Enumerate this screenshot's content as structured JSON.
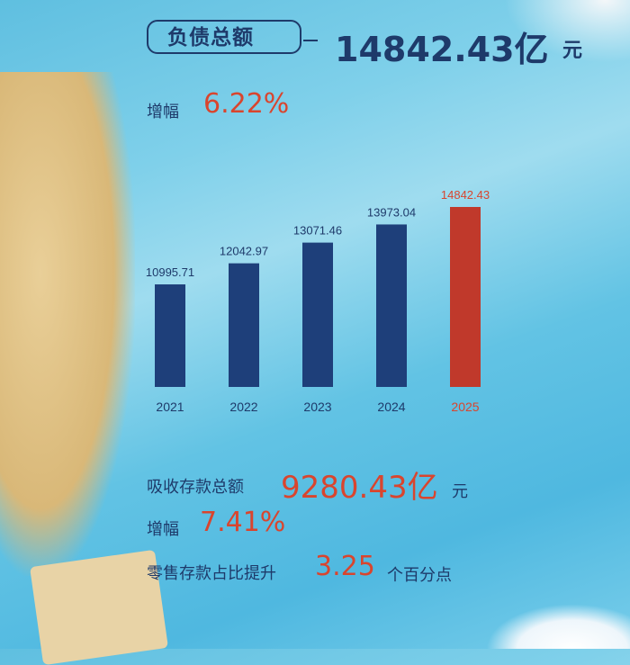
{
  "header": {
    "label": "负债总额",
    "value": "14842.43亿",
    "unit": "元",
    "growth_label": "增幅",
    "growth_value": "6.22%"
  },
  "deposits": {
    "label": "吸收存款总额",
    "value": "9280.43亿",
    "unit": "元",
    "growth_label": "增幅",
    "growth_value": "7.41%",
    "retail_label": "零售存款占比提升",
    "retail_value": "3.25",
    "retail_unit": "个百分点"
  },
  "colors": {
    "bar": "#1e3f7a",
    "highlight": "#c0392b",
    "text": "#1e3a6a",
    "accent": "#d9452e"
  },
  "chart_data": {
    "type": "bar",
    "categories": [
      "2021",
      "2022",
      "2023",
      "2024",
      "2025"
    ],
    "values": [
      10995.71,
      12042.97,
      13071.46,
      13973.04,
      14842.43
    ],
    "value_labels": [
      "10995.71",
      "12042.97",
      "13071.46",
      "13973.04",
      "14842.43"
    ],
    "highlight_index": 4,
    "ylim": [
      5900,
      14842.43
    ],
    "grid": false,
    "title": "",
    "xlabel": "",
    "ylabel": ""
  }
}
